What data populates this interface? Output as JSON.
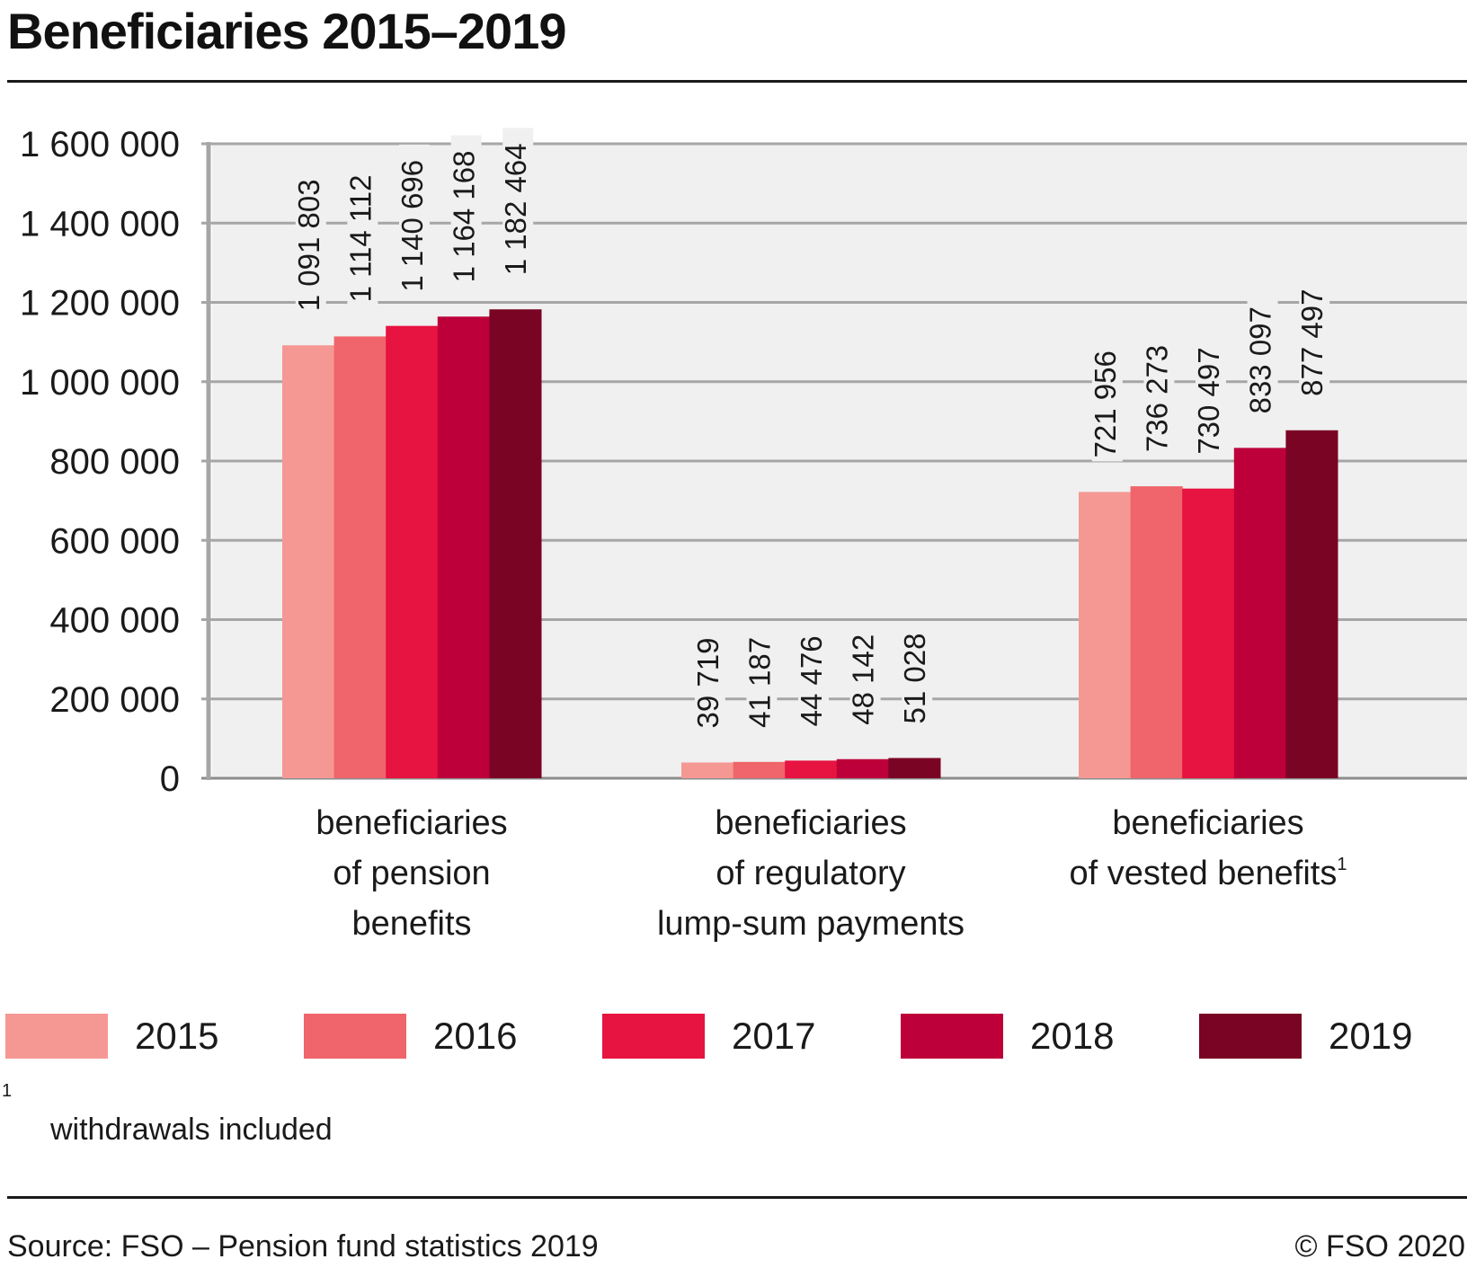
{
  "title": "Beneficiaries 2015–2019",
  "chart_data": {
    "type": "bar",
    "title": "Beneficiaries 2015–2019",
    "xlabel": "",
    "ylabel": "",
    "ylim": [
      0,
      1600000
    ],
    "yticks": [
      0,
      200000,
      400000,
      600000,
      800000,
      1000000,
      1200000,
      1400000,
      1600000
    ],
    "ytick_labels": [
      "0",
      "200 000",
      "400 000",
      "600 000",
      "800 000",
      "1 000 000",
      "1 200 000",
      "1 400 000",
      "1 600 000"
    ],
    "grid": true,
    "legend_position": "bottom",
    "categories": [
      {
        "lines": [
          "beneficiaries",
          "of pension",
          "benefits"
        ],
        "superscript": ""
      },
      {
        "lines": [
          "beneficiaries",
          "of regulatory",
          "lump-sum payments"
        ],
        "superscript": ""
      },
      {
        "lines": [
          "beneficiaries",
          "of vested benefits"
        ],
        "superscript": "1"
      }
    ],
    "series": [
      {
        "name": "2015",
        "color": "#f59893",
        "values": [
          1091803,
          39719,
          721956
        ],
        "labels": [
          "1 091 803",
          "39 719",
          "721 956"
        ]
      },
      {
        "name": "2016",
        "color": "#ef656b",
        "values": [
          1114112,
          41187,
          736273
        ],
        "labels": [
          "1 114 112",
          "41 187",
          "736 273"
        ]
      },
      {
        "name": "2017",
        "color": "#e71340",
        "values": [
          1140696,
          44476,
          730497
        ],
        "labels": [
          "1 140 696",
          "44 476",
          "730 497"
        ]
      },
      {
        "name": "2018",
        "color": "#bd003a",
        "values": [
          1164168,
          48142,
          833097
        ],
        "labels": [
          "1 164 168",
          "48 142",
          "833 097"
        ]
      },
      {
        "name": "2019",
        "color": "#7a0424",
        "values": [
          1182464,
          51028,
          877497
        ],
        "labels": [
          "1 182 464",
          "51 028",
          "877 497"
        ]
      }
    ]
  },
  "footnote": {
    "mark": "1",
    "text": "withdrawals included"
  },
  "source": "Source: FSO – Pension fund statistics 2019",
  "copyright": "© FSO 2020",
  "colors": {
    "plot_background": "#f0f0f0",
    "grid": "#a6a6a6",
    "axis": "#a6a6a6"
  }
}
